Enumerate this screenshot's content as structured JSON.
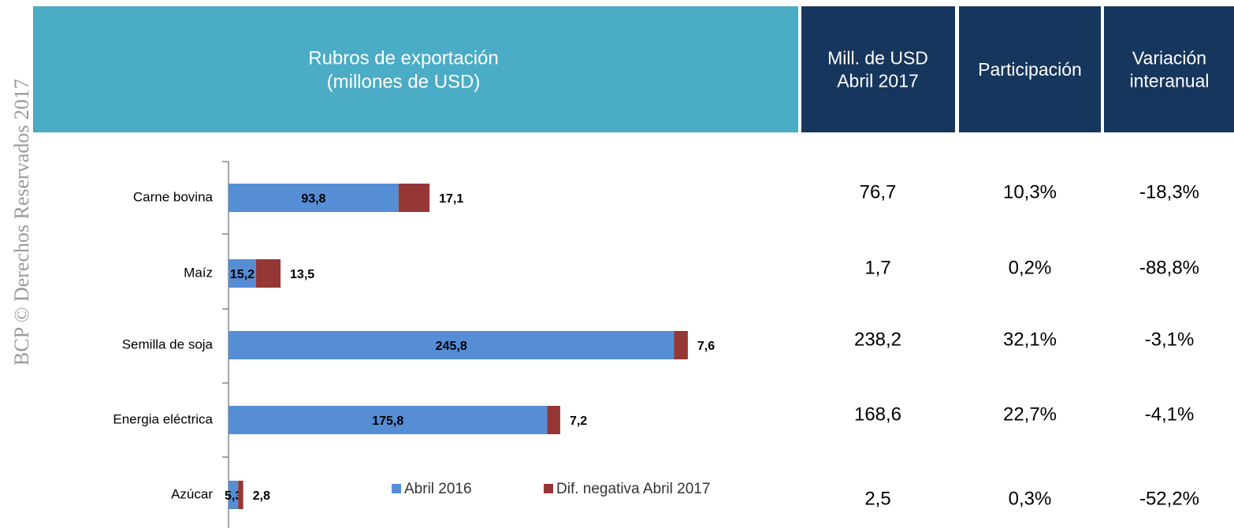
{
  "watermark": "BCP © Derechos Reservados 2017",
  "chart_data": {
    "type": "bar",
    "orientation": "horizontal",
    "stacked": true,
    "title": [
      "Rubros de exportación",
      "(millones de USD)"
    ],
    "categories": [
      "Carne bovina",
      "Maíz",
      "Semilla de soja",
      "Energia eléctrica",
      "Azúcar"
    ],
    "xlim": [
      0,
      313
    ],
    "series": [
      {
        "name": "Abril 2016",
        "color": "#558ed5",
        "values": [
          93.8,
          15.2,
          245.8,
          175.8,
          5.3
        ],
        "value_labels": [
          "93,8",
          "15,2",
          "245,8",
          "175,8",
          "5,3"
        ]
      },
      {
        "name": "Dif. negativa Abril 2017",
        "color": "#953735",
        "values": [
          17.1,
          13.5,
          7.6,
          7.2,
          2.8
        ],
        "value_labels": [
          "17,1",
          "13,5",
          "7,6",
          "7,2",
          "2,8"
        ]
      }
    ]
  },
  "table": {
    "columns": [
      [
        "Mill. de USD",
        "Abril 2017"
      ],
      [
        "Participación"
      ],
      [
        "Variación",
        "interanual"
      ]
    ],
    "rows": [
      [
        "76,7",
        "10,3%",
        "-18,3%"
      ],
      [
        "1,7",
        "0,2%",
        "-88,8%"
      ],
      [
        "238,2",
        "32,1%",
        "-3,1%"
      ],
      [
        "168,6",
        "22,7%",
        "-4,1%"
      ],
      [
        "2,5",
        "0,3%",
        "-52,2%"
      ]
    ]
  }
}
